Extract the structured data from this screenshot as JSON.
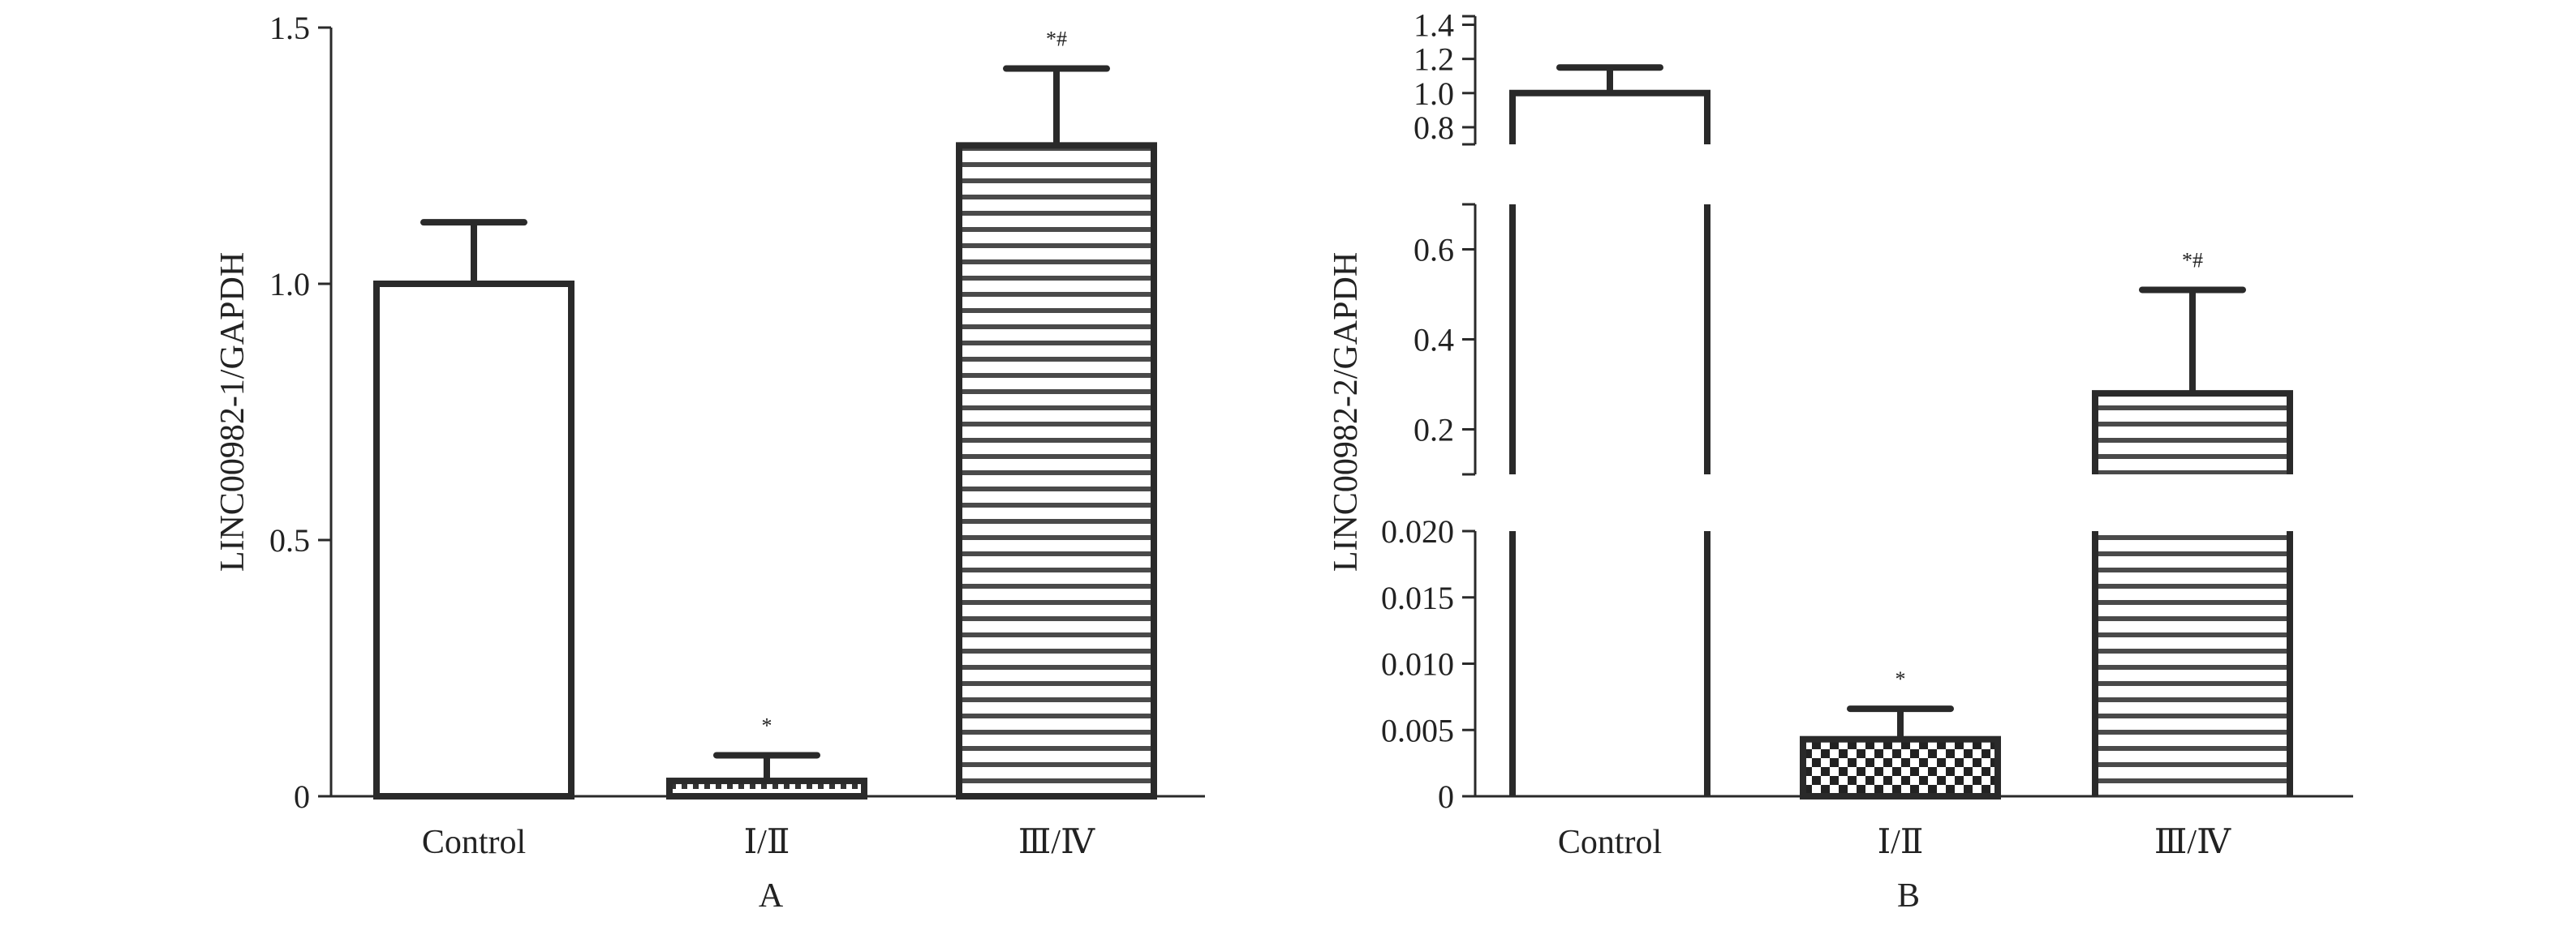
{
  "figure": {
    "panels": [
      {
        "label": "A"
      },
      {
        "label": "B"
      }
    ]
  },
  "chart_data": [
    {
      "type": "bar",
      "panel": "A",
      "title": "",
      "xlabel": "",
      "ylabel": "LINC00982-1/GAPDH",
      "ylim": [
        0,
        1.5
      ],
      "yticks": [
        "0",
        "0.5",
        "1.0",
        "1.5"
      ],
      "categories": [
        "Control",
        "Ⅰ/Ⅱ",
        "Ⅲ/Ⅳ"
      ],
      "values": [
        1.0,
        0.03,
        1.27
      ],
      "errors": [
        0.12,
        0.05,
        0.15
      ],
      "annotations": [
        "",
        "*",
        "*#"
      ],
      "patterns": [
        "solid-white",
        "dotted",
        "horizontal-stripes"
      ],
      "grid": false,
      "legend": "none"
    },
    {
      "type": "bar",
      "panel": "B",
      "title": "",
      "xlabel": "",
      "ylabel": "LINC00982-2/GAPDH",
      "broken_axis": true,
      "segments": [
        {
          "range": [
            0,
            0.02
          ],
          "ticks": [
            "0",
            "0.005",
            "0.010",
            "0.015",
            "0.020"
          ]
        },
        {
          "range": [
            0.1,
            0.7
          ],
          "ticks": [
            "0.2",
            "0.4",
            "0.6"
          ]
        },
        {
          "range": [
            0.7,
            1.45
          ],
          "ticks": [
            "0.8",
            "1.0",
            "1.2",
            "1.4"
          ]
        }
      ],
      "categories": [
        "Control",
        "Ⅰ/Ⅱ",
        "Ⅲ/Ⅳ"
      ],
      "values": [
        1.0,
        0.0043,
        0.28
      ],
      "errors": [
        0.15,
        0.0023,
        0.23
      ],
      "annotations": [
        "",
        "*",
        "*#"
      ],
      "patterns": [
        "solid-white",
        "checkerboard",
        "horizontal-stripes"
      ],
      "grid": false,
      "legend": "none"
    }
  ]
}
